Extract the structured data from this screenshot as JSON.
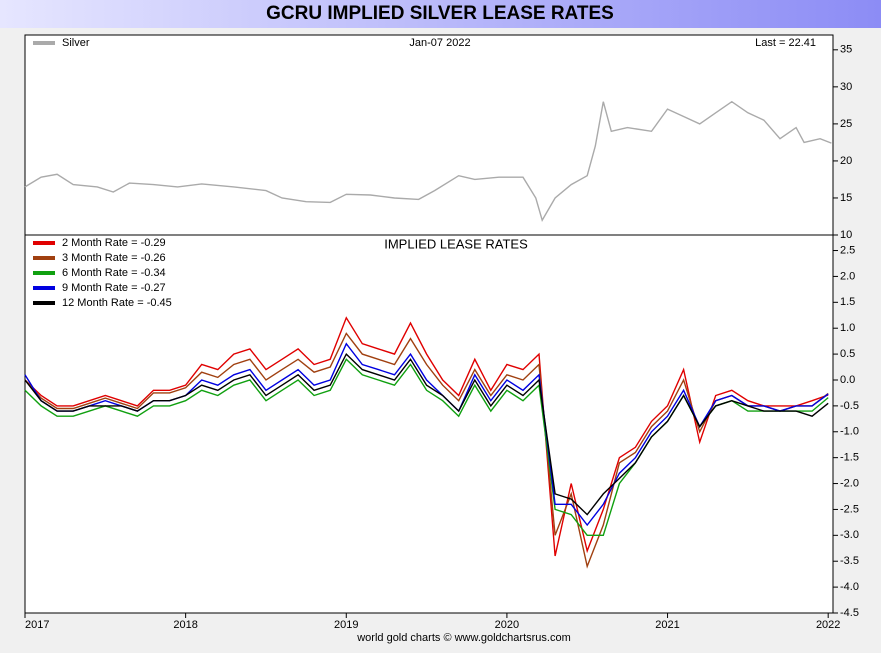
{
  "chart_data": [
    {
      "type": "line",
      "title": "GCRU IMPLIED SILVER LEASE RATES",
      "date_label": "Jan-07  2022",
      "last_label": "Last = 22.41",
      "xlim": [
        2017,
        2022.03
      ],
      "ylim": [
        10,
        37
      ],
      "yticks": [
        10,
        15,
        20,
        25,
        30,
        35
      ],
      "series": [
        {
          "name": "Silver",
          "color": "#aaaaaa",
          "x": [
            2017.0,
            2017.1,
            2017.2,
            2017.3,
            2017.45,
            2017.55,
            2017.65,
            2017.8,
            2017.95,
            2018.1,
            2018.3,
            2018.5,
            2018.6,
            2018.75,
            2018.9,
            2019.0,
            2019.15,
            2019.3,
            2019.45,
            2019.55,
            2019.7,
            2019.8,
            2019.95,
            2020.1,
            2020.18,
            2020.22,
            2020.3,
            2020.4,
            2020.5,
            2020.55,
            2020.6,
            2020.65,
            2020.75,
            2020.9,
            2021.0,
            2021.1,
            2021.2,
            2021.3,
            2021.4,
            2021.5,
            2021.6,
            2021.7,
            2021.8,
            2021.85,
            2021.95,
            2022.02
          ],
          "values": [
            16.5,
            17.8,
            18.2,
            16.8,
            16.5,
            15.8,
            17.0,
            16.8,
            16.5,
            16.9,
            16.5,
            16.0,
            15.0,
            14.5,
            14.4,
            15.5,
            15.4,
            15.0,
            14.8,
            16.0,
            18.0,
            17.5,
            17.8,
            17.8,
            15.0,
            12.0,
            15.0,
            16.8,
            18.0,
            22.0,
            28.0,
            24.0,
            24.5,
            24.0,
            27.0,
            26.0,
            25.0,
            26.5,
            28.0,
            26.5,
            25.5,
            23.0,
            24.5,
            22.5,
            23.0,
            22.41
          ]
        }
      ]
    },
    {
      "type": "line",
      "title": "IMPLIED LEASE RATES",
      "source": "world gold charts © www.goldchartsrus.com",
      "xlim": [
        2017,
        2022.03
      ],
      "ylim": [
        -4.5,
        2.8
      ],
      "xticks": [
        2017,
        2018,
        2019,
        2020,
        2021,
        2022
      ],
      "yticks": [
        {
          "value": 2.5,
          "label": "2.5"
        },
        {
          "value": 2,
          "label": "2.0"
        },
        {
          "value": 1.5,
          "label": "1.5"
        },
        {
          "value": 1,
          "label": "1.0"
        },
        {
          "value": 0.5,
          "label": "0.5"
        },
        {
          "value": 0,
          "label": "0.0"
        },
        {
          "value": -0.5,
          "label": "-0.5"
        },
        {
          "value": -1,
          "label": "-1.0"
        },
        {
          "value": -1.5,
          "label": "-1.5"
        },
        {
          "value": -2,
          "label": "-2.0"
        },
        {
          "value": -2.5,
          "label": "-2.5"
        },
        {
          "value": -3,
          "label": "-3.0"
        },
        {
          "value": -3.5,
          "label": "-3.5"
        },
        {
          "value": -4,
          "label": "-4.0"
        },
        {
          "value": -4.5,
          "label": "-4.5"
        }
      ],
      "x": [
        2017.0,
        2017.1,
        2017.2,
        2017.3,
        2017.4,
        2017.5,
        2017.6,
        2017.7,
        2017.8,
        2017.9,
        2018.0,
        2018.1,
        2018.2,
        2018.3,
        2018.4,
        2018.5,
        2018.6,
        2018.7,
        2018.8,
        2018.9,
        2019.0,
        2019.1,
        2019.2,
        2019.3,
        2019.4,
        2019.5,
        2019.6,
        2019.7,
        2019.8,
        2019.9,
        2020.0,
        2020.1,
        2020.2,
        2020.3,
        2020.4,
        2020.5,
        2020.6,
        2020.7,
        2020.8,
        2020.9,
        2021.0,
        2021.1,
        2021.2,
        2021.3,
        2021.4,
        2021.5,
        2021.6,
        2021.7,
        2021.8,
        2021.9,
        2022.0
      ],
      "series": [
        {
          "name": "2 Month Rate  = -0.29",
          "color": "#e00000",
          "values": [
            0.0,
            -0.3,
            -0.5,
            -0.5,
            -0.4,
            -0.3,
            -0.4,
            -0.5,
            -0.2,
            -0.2,
            -0.1,
            0.3,
            0.2,
            0.5,
            0.6,
            0.2,
            0.4,
            0.6,
            0.3,
            0.4,
            1.2,
            0.7,
            0.6,
            0.5,
            1.1,
            0.5,
            0.0,
            -0.3,
            0.4,
            -0.2,
            0.3,
            0.2,
            0.5,
            -3.4,
            -2.0,
            -3.3,
            -2.5,
            -1.5,
            -1.3,
            -0.8,
            -0.5,
            0.2,
            -1.2,
            -0.3,
            -0.2,
            -0.4,
            -0.5,
            -0.5,
            -0.5,
            -0.4,
            -0.29
          ]
        },
        {
          "name": "3 Month Rate  = -0.26",
          "color": "#a04010",
          "values": [
            0.0,
            -0.35,
            -0.55,
            -0.55,
            -0.45,
            -0.35,
            -0.45,
            -0.55,
            -0.25,
            -0.25,
            -0.15,
            0.15,
            0.05,
            0.3,
            0.4,
            0.0,
            0.2,
            0.4,
            0.15,
            0.25,
            0.9,
            0.5,
            0.4,
            0.3,
            0.8,
            0.3,
            -0.1,
            -0.4,
            0.2,
            -0.3,
            0.1,
            0.0,
            0.3,
            -3.0,
            -2.2,
            -3.6,
            -2.8,
            -1.6,
            -1.4,
            -0.9,
            -0.6,
            0.0,
            -1.0,
            -0.4,
            -0.3,
            -0.5,
            -0.5,
            -0.6,
            -0.5,
            -0.5,
            -0.26
          ]
        },
        {
          "name": "6 Month Rate  = -0.34",
          "color": "#10a010",
          "values": [
            -0.2,
            -0.5,
            -0.7,
            -0.7,
            -0.6,
            -0.5,
            -0.6,
            -0.7,
            -0.5,
            -0.5,
            -0.4,
            -0.2,
            -0.3,
            -0.1,
            0.0,
            -0.4,
            -0.2,
            0.0,
            -0.3,
            -0.2,
            0.4,
            0.1,
            0.0,
            -0.1,
            0.3,
            -0.2,
            -0.4,
            -0.7,
            -0.1,
            -0.6,
            -0.2,
            -0.4,
            -0.1,
            -2.5,
            -2.6,
            -3.0,
            -3.0,
            -2.0,
            -1.6,
            -1.1,
            -0.8,
            -0.3,
            -0.9,
            -0.5,
            -0.4,
            -0.6,
            -0.6,
            -0.6,
            -0.6,
            -0.6,
            -0.34
          ]
        },
        {
          "name": "9 Month Rate  = -0.27",
          "color": "#0000e0",
          "values": [
            0.1,
            -0.4,
            -0.6,
            -0.6,
            -0.5,
            -0.4,
            -0.5,
            -0.6,
            -0.4,
            -0.4,
            -0.3,
            0.0,
            -0.1,
            0.1,
            0.2,
            -0.2,
            0.0,
            0.2,
            -0.1,
            0.0,
            0.7,
            0.3,
            0.2,
            0.1,
            0.5,
            0.0,
            -0.3,
            -0.6,
            0.1,
            -0.4,
            0.0,
            -0.2,
            0.1,
            -2.4,
            -2.4,
            -2.8,
            -2.4,
            -1.8,
            -1.5,
            -1.0,
            -0.7,
            -0.2,
            -0.9,
            -0.4,
            -0.3,
            -0.5,
            -0.5,
            -0.6,
            -0.5,
            -0.5,
            -0.27
          ]
        },
        {
          "name": "12 Month Rate  = -0.45",
          "color": "#000000",
          "values": [
            0.0,
            -0.4,
            -0.6,
            -0.6,
            -0.5,
            -0.5,
            -0.5,
            -0.6,
            -0.4,
            -0.4,
            -0.3,
            -0.1,
            -0.2,
            0.0,
            0.1,
            -0.3,
            -0.1,
            0.1,
            -0.2,
            -0.1,
            0.5,
            0.2,
            0.1,
            0.0,
            0.4,
            -0.1,
            -0.3,
            -0.6,
            0.0,
            -0.5,
            -0.1,
            -0.3,
            0.0,
            -2.2,
            -2.3,
            -2.6,
            -2.2,
            -1.9,
            -1.6,
            -1.1,
            -0.8,
            -0.3,
            -0.9,
            -0.5,
            -0.4,
            -0.5,
            -0.6,
            -0.6,
            -0.6,
            -0.7,
            -0.45
          ]
        }
      ]
    }
  ]
}
